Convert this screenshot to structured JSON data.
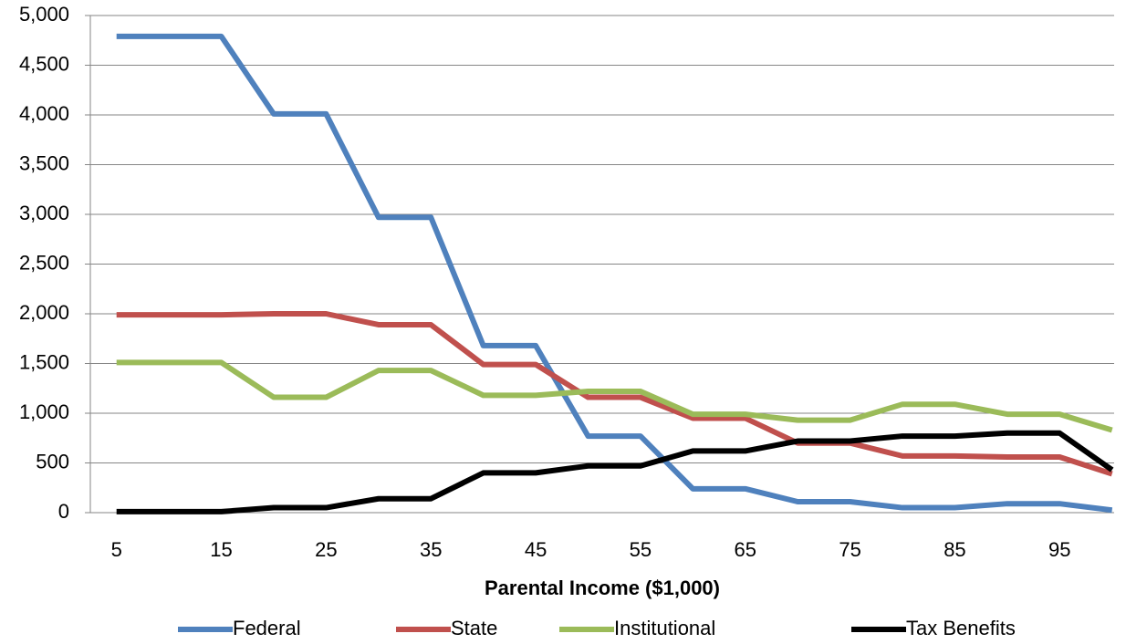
{
  "chart_data": {
    "type": "line",
    "x_label": "Parental Income ($1,000)",
    "x": [
      5,
      10,
      15,
      20,
      25,
      30,
      35,
      40,
      45,
      50,
      55,
      60,
      65,
      70,
      75,
      80,
      85,
      90,
      95,
      100
    ],
    "xlim": [
      2.5,
      100.2
    ],
    "xticks": [
      5,
      15,
      25,
      35,
      45,
      55,
      65,
      75,
      85,
      95
    ],
    "ylim": [
      0,
      5000
    ],
    "yticks": [
      0,
      500,
      {
        "value": 1000,
        "label": "1,000"
      },
      {
        "value": 1500,
        "label": "1,500"
      },
      {
        "value": 2000,
        "label": "2,000"
      },
      {
        "value": 2500,
        "label": "2,500"
      },
      {
        "value": 3000,
        "label": "3,000"
      },
      {
        "value": 3500,
        "label": "3,500"
      },
      {
        "value": 4000,
        "label": "4,000"
      },
      {
        "value": 4500,
        "label": "4,500"
      },
      {
        "value": 5000,
        "label": "5,000"
      }
    ],
    "grid": true,
    "legend": "bottom",
    "series": [
      {
        "name": "Federal",
        "color": "#4f81bd",
        "values": [
          4790,
          4790,
          4790,
          4010,
          4010,
          2970,
          2970,
          1680,
          1680,
          770,
          770,
          240,
          240,
          110,
          110,
          50,
          50,
          90,
          90,
          25
        ]
      },
      {
        "name": "State",
        "color": "#c0504d",
        "values": [
          1990,
          1990,
          1990,
          2000,
          2000,
          1890,
          1890,
          1490,
          1490,
          1160,
          1160,
          950,
          950,
          700,
          700,
          570,
          570,
          560,
          560,
          390
        ]
      },
      {
        "name": "Institutional",
        "color": "#9bbb59",
        "values": [
          1510,
          1510,
          1510,
          1160,
          1160,
          1430,
          1430,
          1180,
          1180,
          1220,
          1220,
          990,
          990,
          930,
          930,
          1090,
          1090,
          990,
          990,
          830
        ]
      },
      {
        "name": "Tax Benefits",
        "color": "#000000",
        "values": [
          10,
          10,
          10,
          50,
          50,
          140,
          140,
          400,
          400,
          470,
          470,
          620,
          620,
          720,
          720,
          770,
          770,
          800,
          800,
          430
        ]
      }
    ]
  }
}
